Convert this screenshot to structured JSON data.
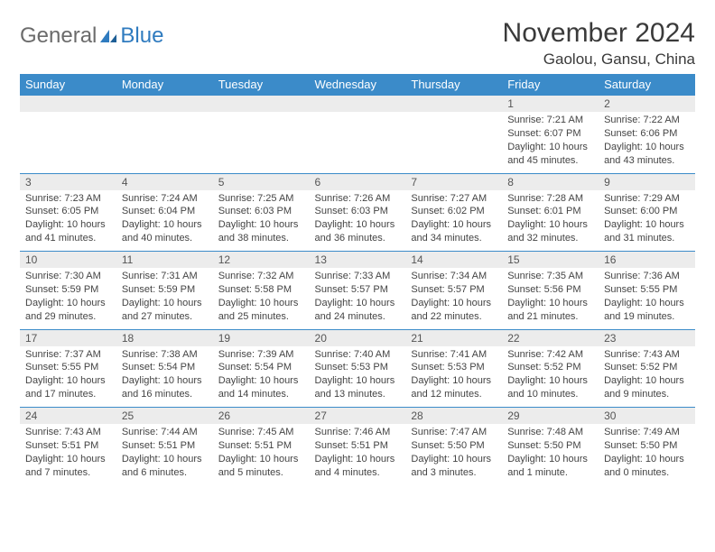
{
  "logo": {
    "general": "General",
    "blue": "Blue"
  },
  "header": {
    "month_title": "November 2024",
    "location": "Gaolou, Gansu, China"
  },
  "colors": {
    "accent": "#3b8bc9",
    "stripe": "#ececec",
    "logo_blue": "#2f7bbf",
    "logo_gray": "#6b6b6b"
  },
  "weekdays": [
    "Sunday",
    "Monday",
    "Tuesday",
    "Wednesday",
    "Thursday",
    "Friday",
    "Saturday"
  ],
  "weeks": [
    {
      "nums": [
        "",
        "",
        "",
        "",
        "",
        "1",
        "2"
      ],
      "cells": [
        {
          "empty": true
        },
        {
          "empty": true
        },
        {
          "empty": true
        },
        {
          "empty": true
        },
        {
          "empty": true
        },
        {
          "sunrise": "Sunrise: 7:21 AM",
          "sunset": "Sunset: 6:07 PM",
          "daylight": "Daylight: 10 hours and 45 minutes."
        },
        {
          "sunrise": "Sunrise: 7:22 AM",
          "sunset": "Sunset: 6:06 PM",
          "daylight": "Daylight: 10 hours and 43 minutes."
        }
      ]
    },
    {
      "nums": [
        "3",
        "4",
        "5",
        "6",
        "7",
        "8",
        "9"
      ],
      "cells": [
        {
          "sunrise": "Sunrise: 7:23 AM",
          "sunset": "Sunset: 6:05 PM",
          "daylight": "Daylight: 10 hours and 41 minutes."
        },
        {
          "sunrise": "Sunrise: 7:24 AM",
          "sunset": "Sunset: 6:04 PM",
          "daylight": "Daylight: 10 hours and 40 minutes."
        },
        {
          "sunrise": "Sunrise: 7:25 AM",
          "sunset": "Sunset: 6:03 PM",
          "daylight": "Daylight: 10 hours and 38 minutes."
        },
        {
          "sunrise": "Sunrise: 7:26 AM",
          "sunset": "Sunset: 6:03 PM",
          "daylight": "Daylight: 10 hours and 36 minutes."
        },
        {
          "sunrise": "Sunrise: 7:27 AM",
          "sunset": "Sunset: 6:02 PM",
          "daylight": "Daylight: 10 hours and 34 minutes."
        },
        {
          "sunrise": "Sunrise: 7:28 AM",
          "sunset": "Sunset: 6:01 PM",
          "daylight": "Daylight: 10 hours and 32 minutes."
        },
        {
          "sunrise": "Sunrise: 7:29 AM",
          "sunset": "Sunset: 6:00 PM",
          "daylight": "Daylight: 10 hours and 31 minutes."
        }
      ]
    },
    {
      "nums": [
        "10",
        "11",
        "12",
        "13",
        "14",
        "15",
        "16"
      ],
      "cells": [
        {
          "sunrise": "Sunrise: 7:30 AM",
          "sunset": "Sunset: 5:59 PM",
          "daylight": "Daylight: 10 hours and 29 minutes."
        },
        {
          "sunrise": "Sunrise: 7:31 AM",
          "sunset": "Sunset: 5:59 PM",
          "daylight": "Daylight: 10 hours and 27 minutes."
        },
        {
          "sunrise": "Sunrise: 7:32 AM",
          "sunset": "Sunset: 5:58 PM",
          "daylight": "Daylight: 10 hours and 25 minutes."
        },
        {
          "sunrise": "Sunrise: 7:33 AM",
          "sunset": "Sunset: 5:57 PM",
          "daylight": "Daylight: 10 hours and 24 minutes."
        },
        {
          "sunrise": "Sunrise: 7:34 AM",
          "sunset": "Sunset: 5:57 PM",
          "daylight": "Daylight: 10 hours and 22 minutes."
        },
        {
          "sunrise": "Sunrise: 7:35 AM",
          "sunset": "Sunset: 5:56 PM",
          "daylight": "Daylight: 10 hours and 21 minutes."
        },
        {
          "sunrise": "Sunrise: 7:36 AM",
          "sunset": "Sunset: 5:55 PM",
          "daylight": "Daylight: 10 hours and 19 minutes."
        }
      ]
    },
    {
      "nums": [
        "17",
        "18",
        "19",
        "20",
        "21",
        "22",
        "23"
      ],
      "cells": [
        {
          "sunrise": "Sunrise: 7:37 AM",
          "sunset": "Sunset: 5:55 PM",
          "daylight": "Daylight: 10 hours and 17 minutes."
        },
        {
          "sunrise": "Sunrise: 7:38 AM",
          "sunset": "Sunset: 5:54 PM",
          "daylight": "Daylight: 10 hours and 16 minutes."
        },
        {
          "sunrise": "Sunrise: 7:39 AM",
          "sunset": "Sunset: 5:54 PM",
          "daylight": "Daylight: 10 hours and 14 minutes."
        },
        {
          "sunrise": "Sunrise: 7:40 AM",
          "sunset": "Sunset: 5:53 PM",
          "daylight": "Daylight: 10 hours and 13 minutes."
        },
        {
          "sunrise": "Sunrise: 7:41 AM",
          "sunset": "Sunset: 5:53 PM",
          "daylight": "Daylight: 10 hours and 12 minutes."
        },
        {
          "sunrise": "Sunrise: 7:42 AM",
          "sunset": "Sunset: 5:52 PM",
          "daylight": "Daylight: 10 hours and 10 minutes."
        },
        {
          "sunrise": "Sunrise: 7:43 AM",
          "sunset": "Sunset: 5:52 PM",
          "daylight": "Daylight: 10 hours and 9 minutes."
        }
      ]
    },
    {
      "nums": [
        "24",
        "25",
        "26",
        "27",
        "28",
        "29",
        "30"
      ],
      "cells": [
        {
          "sunrise": "Sunrise: 7:43 AM",
          "sunset": "Sunset: 5:51 PM",
          "daylight": "Daylight: 10 hours and 7 minutes."
        },
        {
          "sunrise": "Sunrise: 7:44 AM",
          "sunset": "Sunset: 5:51 PM",
          "daylight": "Daylight: 10 hours and 6 minutes."
        },
        {
          "sunrise": "Sunrise: 7:45 AM",
          "sunset": "Sunset: 5:51 PM",
          "daylight": "Daylight: 10 hours and 5 minutes."
        },
        {
          "sunrise": "Sunrise: 7:46 AM",
          "sunset": "Sunset: 5:51 PM",
          "daylight": "Daylight: 10 hours and 4 minutes."
        },
        {
          "sunrise": "Sunrise: 7:47 AM",
          "sunset": "Sunset: 5:50 PM",
          "daylight": "Daylight: 10 hours and 3 minutes."
        },
        {
          "sunrise": "Sunrise: 7:48 AM",
          "sunset": "Sunset: 5:50 PM",
          "daylight": "Daylight: 10 hours and 1 minute."
        },
        {
          "sunrise": "Sunrise: 7:49 AM",
          "sunset": "Sunset: 5:50 PM",
          "daylight": "Daylight: 10 hours and 0 minutes."
        }
      ]
    }
  ]
}
